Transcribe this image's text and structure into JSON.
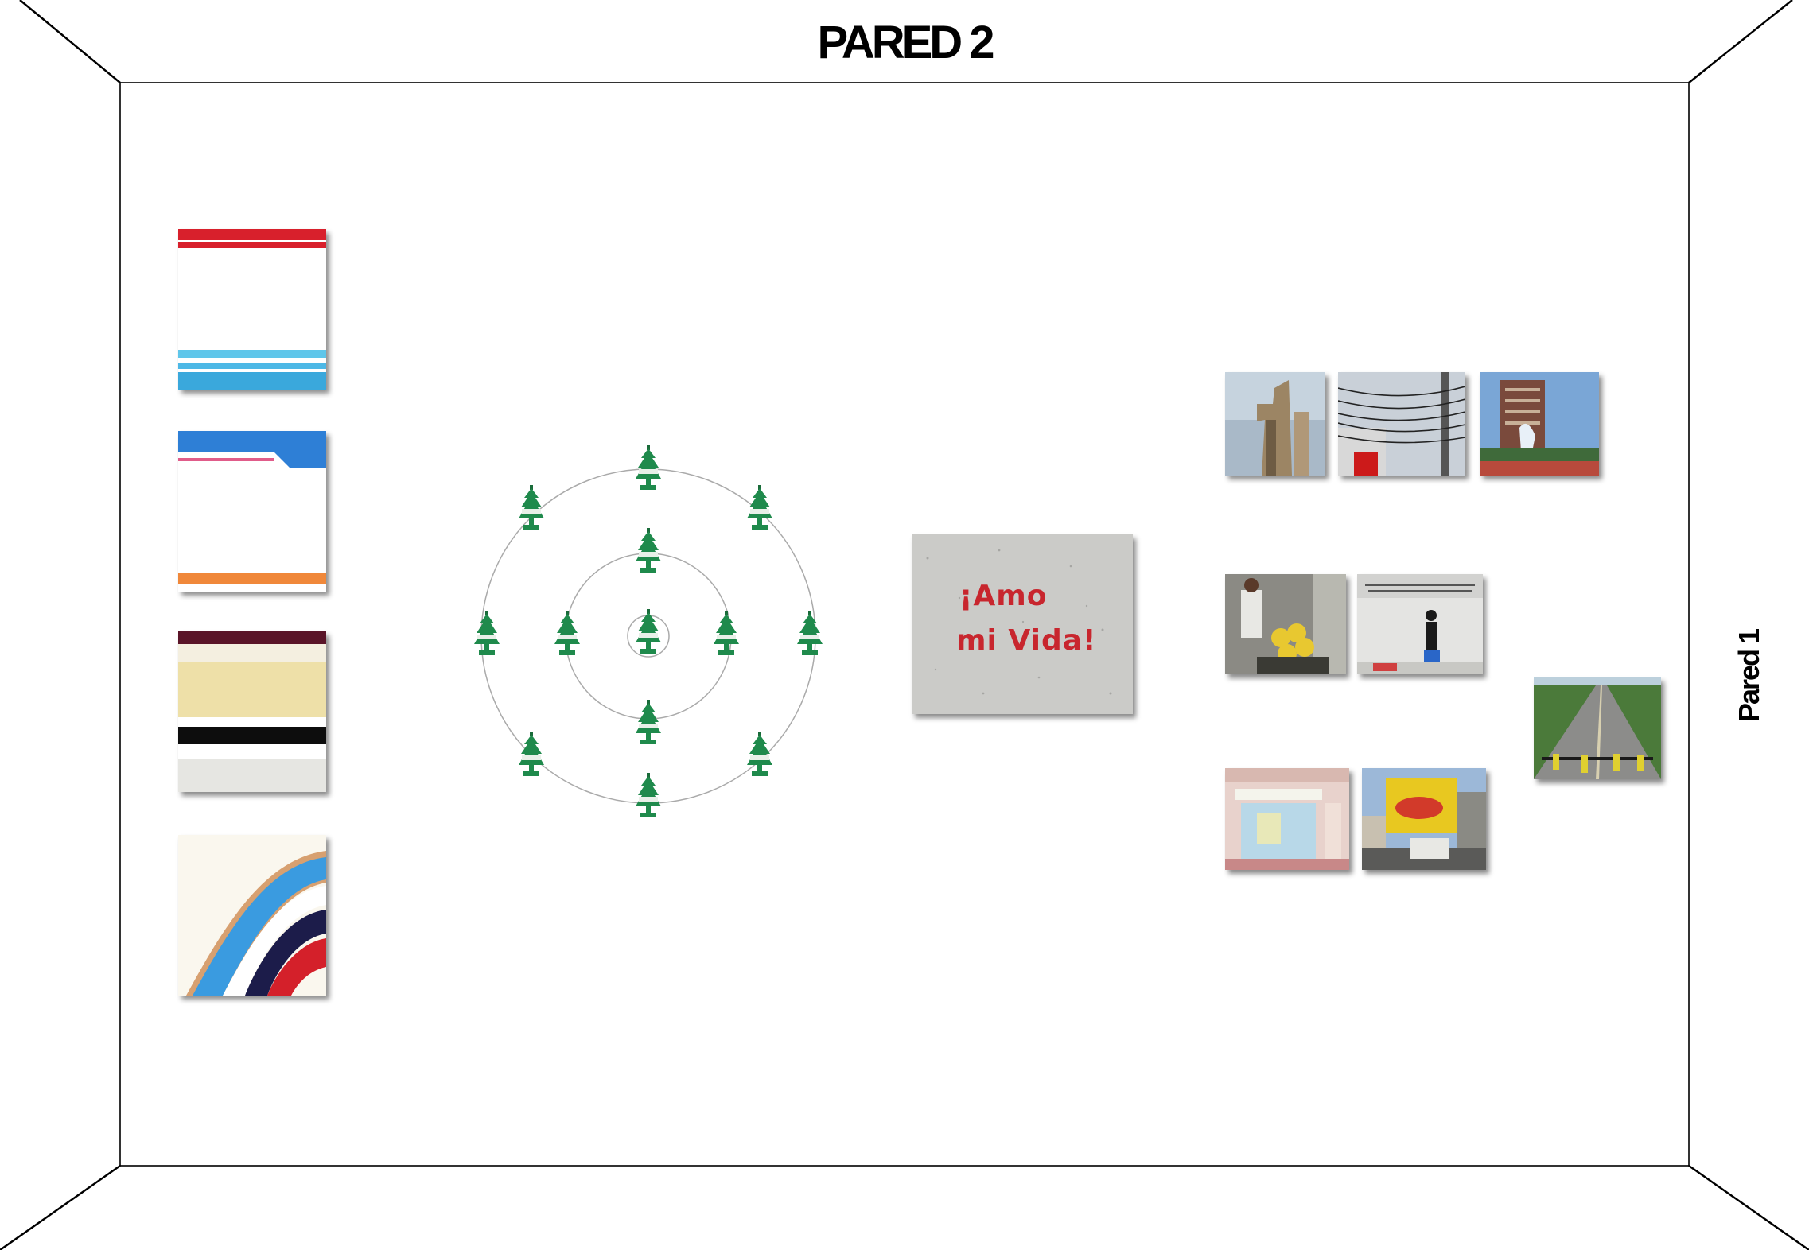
{
  "wall_title": "PARED 2",
  "side_wall_label": "Pared 1",
  "graffiti": {
    "line1": "¡Amo",
    "line2": "mi Vida!",
    "text_color": "#c8262e"
  },
  "colors": {
    "tree_green": "#1f8a4c",
    "wall_line": "#000000"
  },
  "icons": [
    "air-freshener-tree-icon"
  ]
}
